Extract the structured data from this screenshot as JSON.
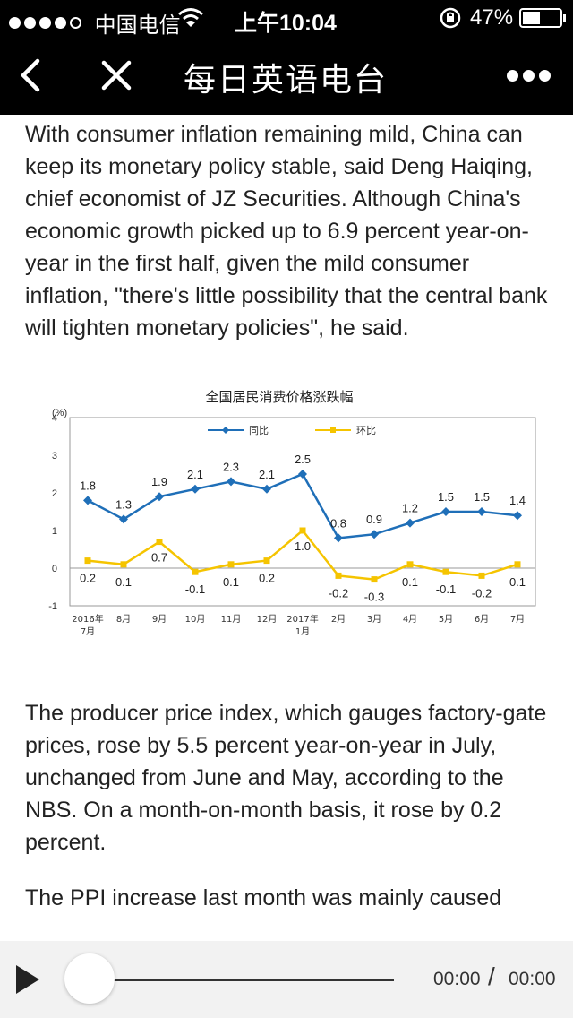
{
  "status_bar": {
    "carrier": "中国电信",
    "time": "上午10:04",
    "battery_percent": "47%",
    "battery_level": 0.47
  },
  "nav": {
    "title": "每日英语电台",
    "back_icon": "chevron-left-icon",
    "close_icon": "close-icon",
    "more_icon": "more-dots-icon"
  },
  "article": {
    "para1": "With consumer inflation remaining mild, China can keep its monetary policy stable, said Deng Haiqing, chief economist of JZ Securities. Although China's economic growth picked up to 6.9 percent year-on-year in the first half, given the mild consumer inflation, \"there's little possibility that the central bank will tighten monetary policies\", he said.",
    "para2": "The producer price index, which gauges factory-gate prices, rose by 5.5 percent year-on-year in July, unchanged from June and May, according to the NBS. On a month-on-month basis, it rose by 0.2 percent.",
    "para3": "The PPI increase last month was mainly caused"
  },
  "chart_data": {
    "type": "line",
    "title": "全国居民消费价格涨跌幅",
    "ylabel": "(%)",
    "ylim": [
      -1,
      4
    ],
    "yticks": [
      -1,
      0,
      1,
      2,
      3,
      4
    ],
    "categories": [
      "2016年7月",
      "8月",
      "9月",
      "10月",
      "11月",
      "12月",
      "2017年1月",
      "2月",
      "3月",
      "4月",
      "5月",
      "6月",
      "7月"
    ],
    "series": [
      {
        "name": "同比",
        "color": "#1f6fb8",
        "values": [
          1.8,
          1.3,
          1.9,
          2.1,
          2.3,
          2.1,
          2.5,
          0.8,
          0.9,
          1.2,
          1.5,
          1.5,
          1.4
        ]
      },
      {
        "name": "环比",
        "color": "#f5c400",
        "values": [
          0.2,
          0.1,
          0.7,
          -0.1,
          0.1,
          0.2,
          1.0,
          -0.2,
          -0.3,
          0.1,
          -0.1,
          -0.2,
          0.1
        ]
      }
    ],
    "legend": "top-left",
    "grid": false
  },
  "player": {
    "current_time": "00:00",
    "separator": "/",
    "total_time": "00:00",
    "progress": 0
  }
}
